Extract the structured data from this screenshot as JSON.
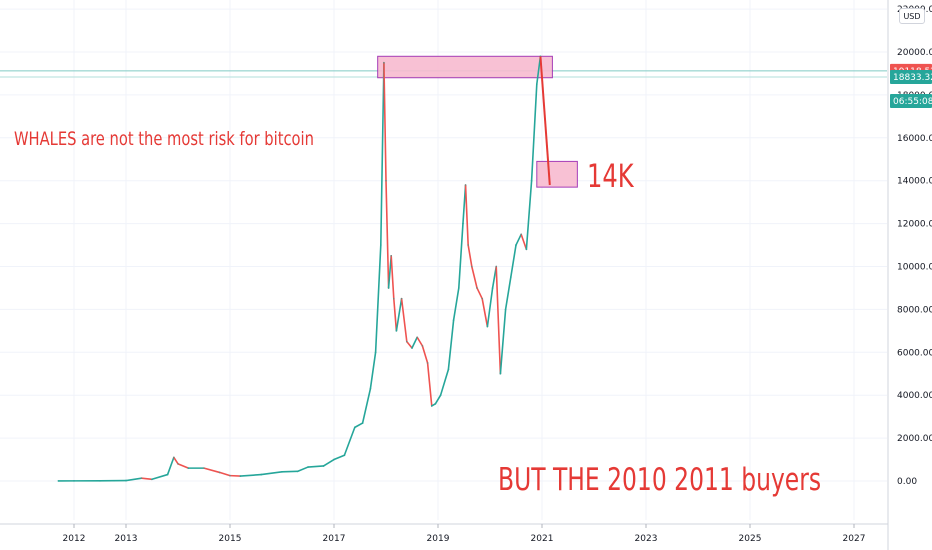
{
  "chart_data": {
    "type": "candlestick-line",
    "currency": "USD",
    "price_scale": {
      "ticks": [
        "0.00",
        "2000.00",
        "4000.00",
        "6000.00",
        "8000.00",
        "10000.00",
        "12000.00",
        "14000.00",
        "16000.00",
        "18000.00",
        "20000.00",
        "22000.00"
      ],
      "tick_values": [
        0,
        2000,
        4000,
        6000,
        8000,
        10000,
        12000,
        14000,
        16000,
        18000,
        20000,
        22000
      ],
      "ylim": [
        -2000,
        22500
      ]
    },
    "time_scale": {
      "ticks": [
        "2012",
        "2013",
        "2015",
        "2017",
        "2019",
        "2021",
        "2023",
        "2025",
        "2027"
      ],
      "tick_years": [
        2012.0,
        2013.0,
        2015.0,
        2017.0,
        2019.0,
        2021.0,
        2023.0,
        2025.0,
        2027.0
      ],
      "xlim": [
        2011.3,
        2027.6
      ]
    },
    "price_tags": [
      {
        "label": "19118.52",
        "value": 19118.52,
        "color": "#ef5350"
      },
      {
        "label": "18833.32",
        "value": 18833.32,
        "color": "#26a69a"
      },
      {
        "label": "06:55:08",
        "value": 17800,
        "color": "#26a69a"
      }
    ],
    "horizontal_lines": [
      19118.52,
      18833.32
    ],
    "series": {
      "x": [
        2011.7,
        2012.0,
        2012.5,
        2013.0,
        2013.3,
        2013.5,
        2013.8,
        2013.92,
        2014.0,
        2014.2,
        2014.5,
        2014.8,
        2015.0,
        2015.2,
        2015.6,
        2016.0,
        2016.3,
        2016.5,
        2016.8,
        2017.0,
        2017.2,
        2017.4,
        2017.55,
        2017.7,
        2017.8,
        2017.9,
        2017.96,
        2018.0,
        2018.05,
        2018.1,
        2018.15,
        2018.2,
        2018.3,
        2018.4,
        2018.5,
        2018.6,
        2018.7,
        2018.8,
        2018.88,
        2018.95,
        2019.05,
        2019.2,
        2019.3,
        2019.4,
        2019.48,
        2019.53,
        2019.58,
        2019.65,
        2019.75,
        2019.85,
        2019.95,
        2020.05,
        2020.12,
        2020.2,
        2020.3,
        2020.4,
        2020.5,
        2020.6,
        2020.7,
        2020.8,
        2020.9,
        2020.97
      ],
      "y": [
        4,
        6,
        10,
        20,
        130,
        80,
        300,
        1100,
        800,
        600,
        600,
        400,
        250,
        230,
        300,
        430,
        450,
        650,
        700,
        1000,
        1200,
        2500,
        2700,
        4300,
        6000,
        11000,
        19500,
        14000,
        9000,
        10500,
        8500,
        7000,
        8500,
        6500,
        6200,
        6700,
        6300,
        5500,
        3500,
        3600,
        4000,
        5200,
        7500,
        9000,
        12000,
        13800,
        11000,
        10000,
        9000,
        8500,
        7200,
        9000,
        10000,
        5000,
        8000,
        9500,
        11000,
        11500,
        10800,
        14000,
        18500,
        19800
      ]
    },
    "boxes": [
      {
        "value_low": 18800,
        "value_high": 19800,
        "x_from": 2017.84,
        "x_to": 2021.2
      },
      {
        "value_low": 13700,
        "value_high": 14900,
        "x_from": 2020.9,
        "x_to": 2021.68
      }
    ],
    "arrow": {
      "from": [
        2020.97,
        19800
      ],
      "to": [
        2021.15,
        13800
      ]
    }
  },
  "annotations": {
    "whales": "WHALES are not the most risk for bitcoin",
    "target": "14K",
    "buyers": "BUT THE 2010 2011 buyers"
  },
  "colors": {
    "up": "#26a69a",
    "down": "#ef5350",
    "text_red": "#e53935",
    "box_fill": "#f8bbd0",
    "box_border": "#9c27b0",
    "grid": "#f0f3fa"
  },
  "toolbar": {
    "currency_label": "USD"
  }
}
